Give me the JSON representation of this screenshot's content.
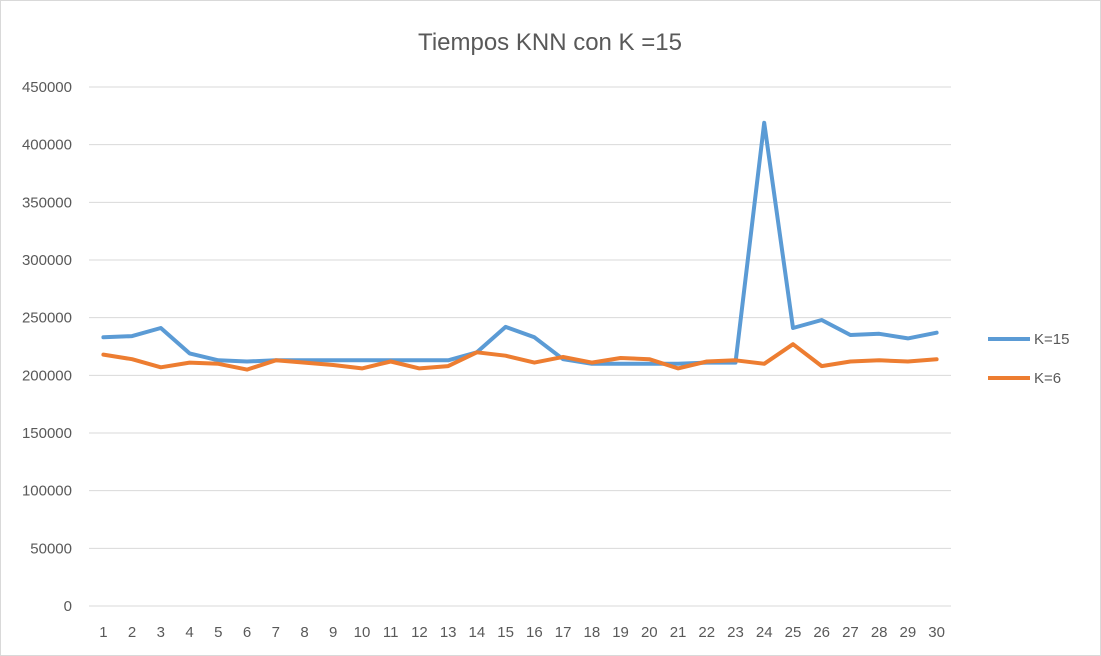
{
  "chart_data": {
    "type": "line",
    "title": "Tiempos KNN con K =15",
    "xlabel": "",
    "ylabel": "",
    "categories": [
      "1",
      "2",
      "3",
      "4",
      "5",
      "6",
      "7",
      "8",
      "9",
      "10",
      "11",
      "12",
      "13",
      "14",
      "15",
      "16",
      "17",
      "18",
      "19",
      "20",
      "21",
      "22",
      "23",
      "24",
      "25",
      "26",
      "27",
      "28",
      "29",
      "30"
    ],
    "ylim": [
      0,
      450000
    ],
    "yticks": [
      0,
      50000,
      100000,
      150000,
      200000,
      250000,
      300000,
      350000,
      400000,
      450000
    ],
    "grid": true,
    "legend_position": "right",
    "series": [
      {
        "name": "K=15",
        "color": "#5b9bd5",
        "values": [
          233000,
          234000,
          241000,
          219000,
          213000,
          212000,
          213000,
          213000,
          213000,
          213000,
          213000,
          213000,
          213000,
          220000,
          242000,
          233000,
          214000,
          210000,
          210000,
          210000,
          210000,
          211000,
          211000,
          419000,
          241000,
          248000,
          235000,
          236000,
          232000,
          237000
        ]
      },
      {
        "name": "K=6",
        "color": "#ed7d31",
        "values": [
          218000,
          214000,
          207000,
          211000,
          210000,
          205000,
          213000,
          211000,
          209000,
          206000,
          212000,
          206000,
          208000,
          220000,
          217000,
          211000,
          216000,
          211000,
          215000,
          214000,
          206000,
          212000,
          213000,
          210000,
          227000,
          208000,
          212000,
          213000,
          212000,
          214000
        ]
      }
    ]
  }
}
